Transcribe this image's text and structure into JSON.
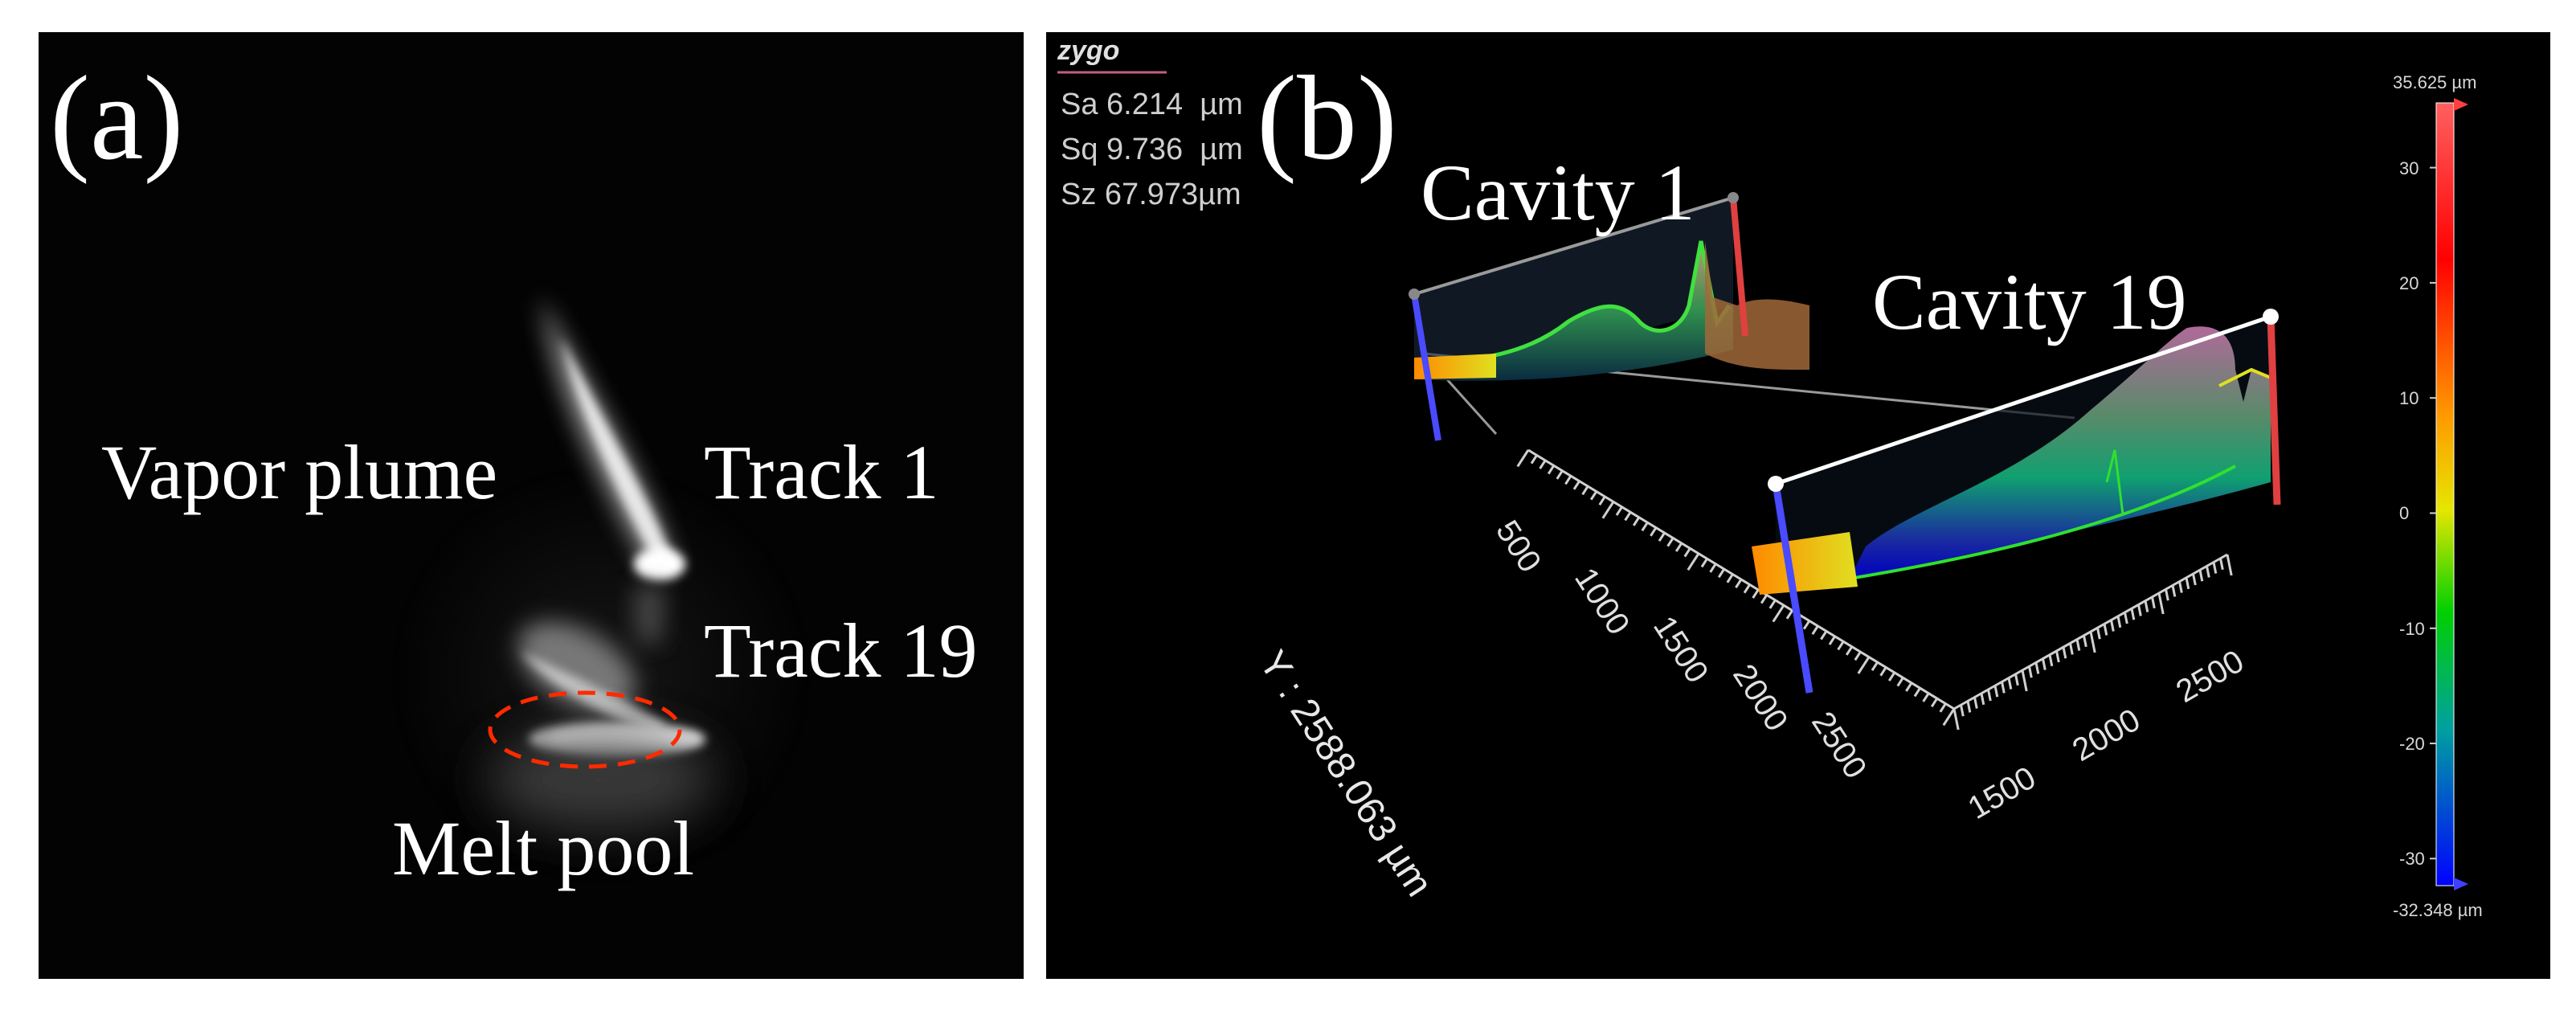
{
  "panel_a": {
    "label": "(a)",
    "annotations": {
      "vapor_plume": "Vapor plume",
      "track_1": "Track 1",
      "track_19": "Track 19",
      "melt_pool": "Melt pool"
    },
    "melt_pool_marker_color": "#ff2a00"
  },
  "panel_b": {
    "label": "(b)",
    "logo": "zygo",
    "metrics": [
      {
        "name": "Sa",
        "value": "6.214",
        "unit": "µm"
      },
      {
        "name": "Sq",
        "value": "9.736",
        "unit": "µm"
      },
      {
        "name": "Sz",
        "value": "67.973",
        "unit": "µm"
      }
    ],
    "annotations": {
      "cavity_1": "Cavity 1",
      "cavity_19": "Cavity 19"
    },
    "y_axis": {
      "label": "Y : 2588.063 µm",
      "ticks": [
        "500",
        "1000",
        "1500",
        "2000",
        "2500"
      ]
    },
    "x_axis": {
      "ticks": [
        "1500",
        "2000",
        "2500"
      ]
    },
    "colorbar": {
      "max_label": "35.625 µm",
      "min_label": "-32.348 µm",
      "ticks": [
        "30",
        "20",
        "10",
        "0",
        "-10",
        "-20",
        "-30"
      ],
      "max_value": 35.625,
      "min_value": -32.348,
      "tick_values": [
        30,
        20,
        10,
        0,
        -10,
        -20,
        -30
      ]
    }
  }
}
